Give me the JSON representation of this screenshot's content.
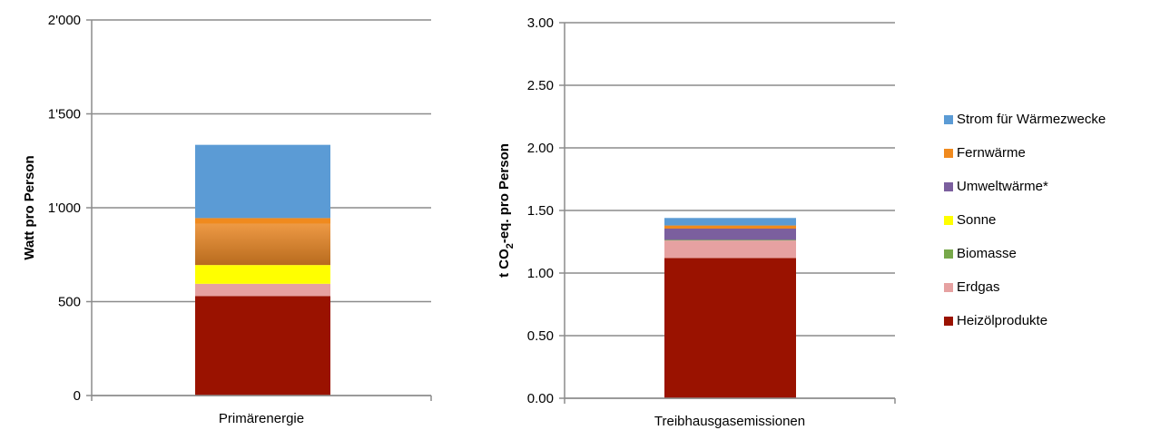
{
  "chart_data": [
    {
      "type": "bar",
      "stacked": true,
      "categories": [
        "Primärenergie"
      ],
      "ylabel": "Watt pro Person",
      "ylim": [
        0,
        2000
      ],
      "yticks": [
        0,
        500,
        1000,
        1500,
        2000
      ],
      "ytick_labels": [
        "0",
        "500",
        "1'000",
        "1'500",
        "2'000"
      ],
      "grid": true,
      "series": [
        {
          "name": "Heizölprodukte",
          "values": [
            530
          ]
        },
        {
          "name": "Erdgas",
          "values": [
            65
          ]
        },
        {
          "name": "Biomasse",
          "values": [
            0
          ]
        },
        {
          "name": "Sonne",
          "values": [
            100
          ]
        },
        {
          "name": "Umweltwärme*",
          "values": [
            0
          ]
        },
        {
          "name": "Fernwärme",
          "values": [
            250
          ]
        },
        {
          "name": "Strom für Wärmezwecke",
          "values": [
            390
          ]
        }
      ]
    },
    {
      "type": "bar",
      "stacked": true,
      "categories": [
        "Treibhausgasemissionen"
      ],
      "ylabel_parts": [
        "t CO",
        "2",
        "-eq. pro Person"
      ],
      "ylim": [
        0,
        3
      ],
      "yticks": [
        0,
        0.5,
        1,
        1.5,
        2,
        2.5,
        3
      ],
      "ytick_labels": [
        "0.00",
        "0.50",
        "1.00",
        "1.50",
        "2.00",
        "2.50",
        "3.00"
      ],
      "grid": true,
      "series": [
        {
          "name": "Heizölprodukte",
          "values": [
            1.12
          ]
        },
        {
          "name": "Erdgas",
          "values": [
            0.14
          ]
        },
        {
          "name": "Biomasse",
          "values": [
            0.005
          ]
        },
        {
          "name": "Sonne",
          "values": [
            0.0
          ]
        },
        {
          "name": "Umweltwärme*",
          "values": [
            0.09
          ]
        },
        {
          "name": "Fernwärme",
          "values": [
            0.025
          ]
        },
        {
          "name": "Strom für Wärmezwecke",
          "values": [
            0.06
          ]
        }
      ]
    }
  ],
  "legend": {
    "placement": "right",
    "items": [
      {
        "label": "Strom für Wärmezwecke",
        "color": "#5b9bd5"
      },
      {
        "label": "Fernwärme",
        "color": "#f08a1e"
      },
      {
        "label": "Umweltwärme*",
        "color": "#7b5f9e"
      },
      {
        "label": "Sonne",
        "color": "#ffff00"
      },
      {
        "label": "Biomasse",
        "color": "#77a84a"
      },
      {
        "label": "Erdgas",
        "color": "#e6a1a1"
      },
      {
        "label": "Heizölprodukte",
        "color": "#9a1200"
      }
    ]
  }
}
